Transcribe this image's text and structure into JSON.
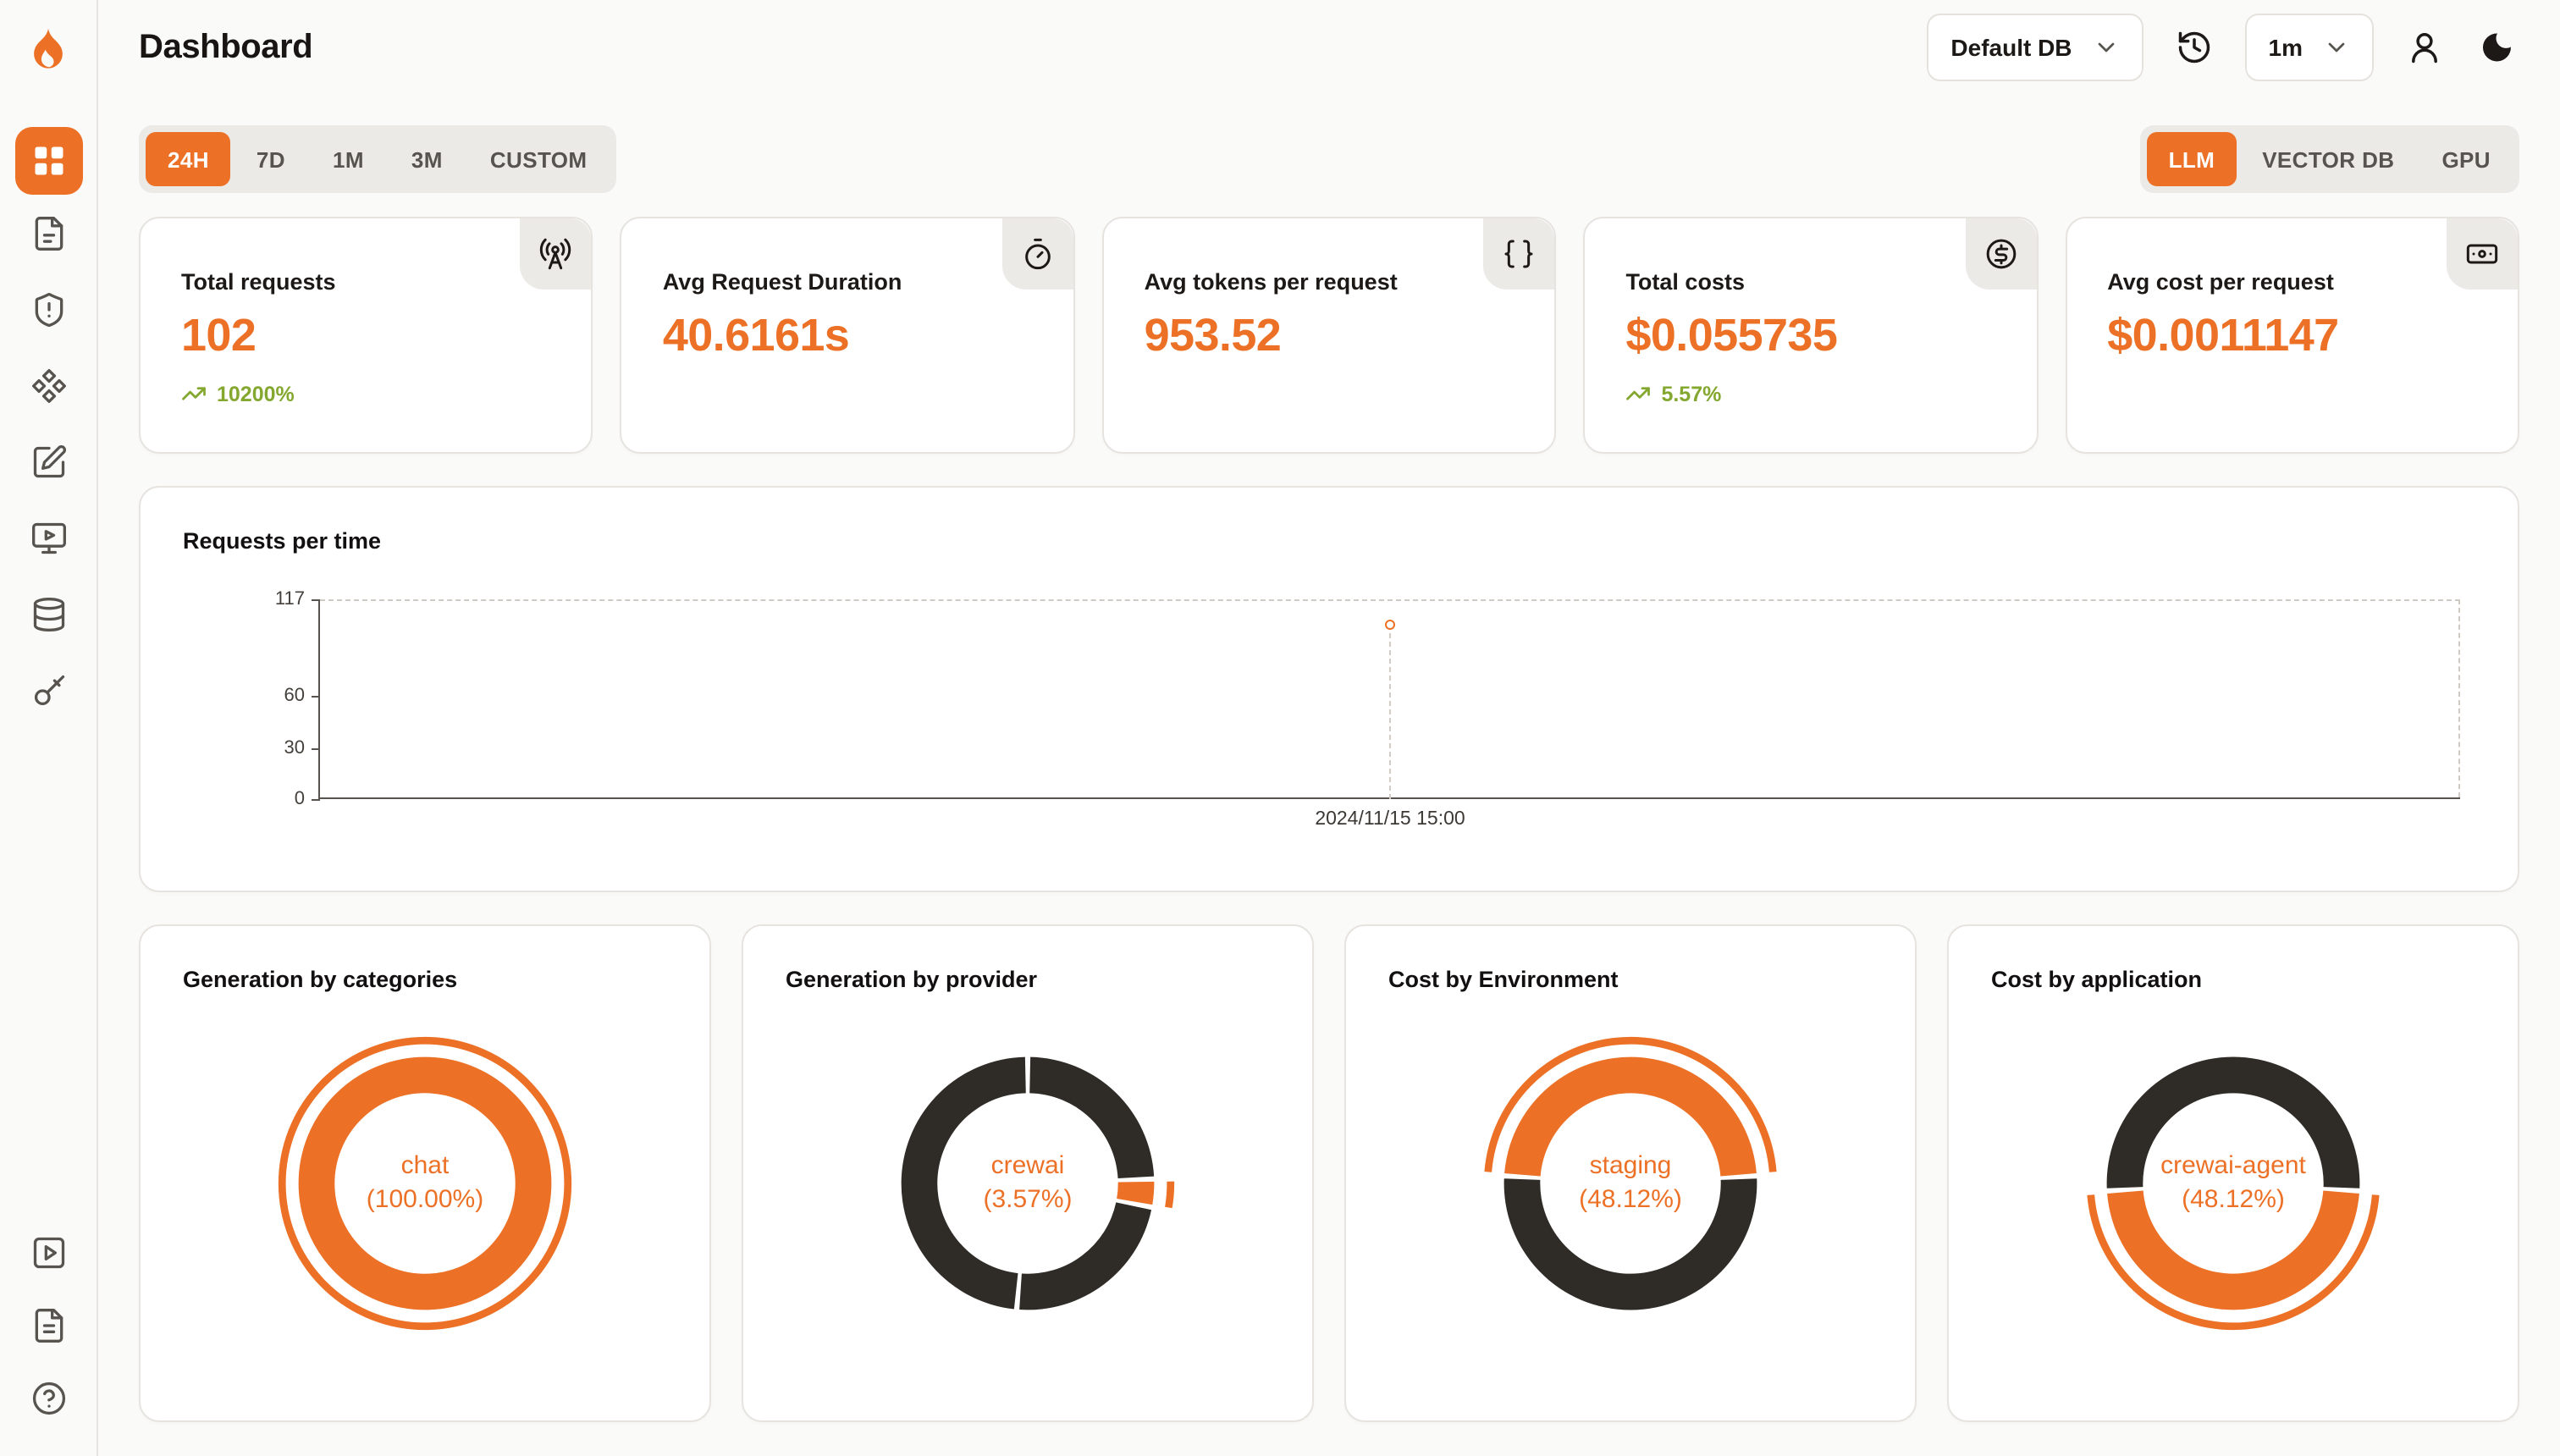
{
  "app": {
    "title": "Dashboard"
  },
  "header": {
    "db_select": {
      "value": "Default DB",
      "icon": "chevron-down-icon"
    },
    "history_button": {
      "icon": "history-icon"
    },
    "interval_select": {
      "value": "1m",
      "icon": "chevron-down-icon"
    },
    "user_button": {
      "icon": "user-icon"
    },
    "theme_toggle": {
      "icon": "moon-icon"
    }
  },
  "sidebar": {
    "active_index": 0,
    "icons": [
      "layout-grid-icon",
      "file-icon",
      "shield-alert-icon",
      "component-icon",
      "square-pen-icon",
      "monitor-play-icon",
      "database-icon",
      "key-icon"
    ],
    "footer_icons": [
      "square-play-icon",
      "file-text-icon",
      "help-circle-icon"
    ]
  },
  "toolbar": {
    "time_ranges": [
      "24H",
      "7D",
      "1M",
      "3M",
      "CUSTOM"
    ],
    "active_time_range": "24H",
    "scopes": [
      "LLM",
      "VECTOR DB",
      "GPU"
    ],
    "active_scope": "LLM"
  },
  "stats": [
    {
      "label": "Total requests",
      "value": "102",
      "delta": "10200%",
      "icon": "radio-tower-icon"
    },
    {
      "label": "Avg Request Duration",
      "value": "40.6161s",
      "icon": "timer-icon"
    },
    {
      "label": "Avg tokens per request",
      "value": "953.52",
      "icon": "braces-icon"
    },
    {
      "label": "Total costs",
      "value": "$0.055735",
      "delta": "5.57%",
      "icon": "circle-dollar-icon"
    },
    {
      "label": "Avg cost per request",
      "value": "$0.0011147",
      "icon": "banknote-icon"
    }
  ],
  "chart_data": [
    {
      "type": "line",
      "title": "Requests per time",
      "x": [
        "2024/11/15 15:00"
      ],
      "series": [
        {
          "name": "requests",
          "values": [
            102
          ]
        }
      ],
      "yticks": [
        117,
        60,
        30,
        0
      ],
      "ylim": [
        0,
        117
      ],
      "point": {
        "x_frac": 0.5,
        "value": 102,
        "x_label": "2024/11/15 15:00"
      },
      "grid": "dashed-border"
    },
    {
      "type": "pie",
      "title": "Generation by categories",
      "center_label": "chat",
      "center_value": "(100.00%)",
      "segments": [
        {
          "name": "chat",
          "pct": 100,
          "start": 0,
          "sweep": 360,
          "color": "accent"
        }
      ],
      "highlight": {
        "start": 0,
        "sweep": 360
      }
    },
    {
      "type": "pie",
      "title": "Generation by provider",
      "center_label": "crewai",
      "center_value": "(3.57%)",
      "segments": [
        {
          "name": "others",
          "start": 0,
          "sweep": 88,
          "color": "dark"
        },
        {
          "name": "crewai",
          "pct": 3.57,
          "start": 88,
          "sweep": 12.9,
          "color": "accent"
        },
        {
          "name": "others",
          "start": 100.9,
          "sweep": 84.1,
          "color": "dark"
        },
        {
          "name": "others",
          "start": 185,
          "sweep": 175,
          "color": "dark"
        }
      ],
      "highlight": {
        "start": 88,
        "sweep": 12.9
      }
    },
    {
      "type": "pie",
      "title": "Cost by Environment",
      "center_label": "staging",
      "center_value": "(48.12%)",
      "segments": [
        {
          "name": "staging",
          "pct": 48.12,
          "start": -86.6,
          "sweep": 173.2,
          "color": "accent"
        },
        {
          "name": "others",
          "pct": 51.88,
          "start": 86.6,
          "sweep": 186.8,
          "color": "dark"
        }
      ],
      "highlight": {
        "start": -86.6,
        "sweep": 173.2
      }
    },
    {
      "type": "pie",
      "title": "Cost by application",
      "center_label": "crewai-agent",
      "center_value": "(48.12%)",
      "segments": [
        {
          "name": "crewai-agent",
          "pct": 48.12,
          "start": 93.4,
          "sweep": 173.2,
          "color": "accent"
        },
        {
          "name": "others",
          "pct": 51.88,
          "start": 266.6,
          "sweep": 186.8,
          "color": "dark"
        }
      ],
      "highlight": {
        "start": 93.4,
        "sweep": 173.2
      }
    }
  ],
  "colors": {
    "accent": "#ec7126",
    "dark": "#2f2b26",
    "green": "#84a82f"
  }
}
